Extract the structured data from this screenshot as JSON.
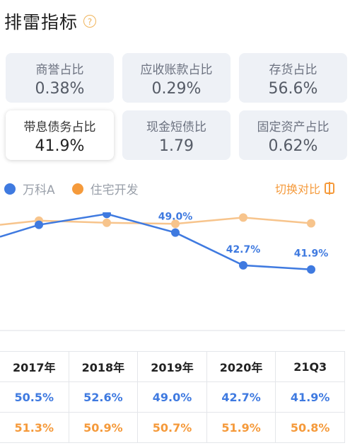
{
  "header": {
    "title": "排雷指标",
    "help_icon": "?"
  },
  "metrics": [
    {
      "label": "商誉占比",
      "value": "0.38%"
    },
    {
      "label": "应收账款占比",
      "value": "0.29%"
    },
    {
      "label": "存货占比",
      "value": "56.6%"
    },
    {
      "label": "带息债务占比",
      "value": "41.9%"
    },
    {
      "label": "现金短债比",
      "value": "1.79"
    },
    {
      "label": "固定资产占比",
      "value": "0.62%"
    }
  ],
  "legend": {
    "series1": "万科A",
    "series2": "住宅开发",
    "compare": "切换对比"
  },
  "colors": {
    "series1": "#3f7ae0",
    "series2": "#f7c48c",
    "series2_text": "#f59a3b"
  },
  "chart_data": {
    "type": "line",
    "x": [
      "2017年",
      "2018年",
      "2019年",
      "2020年",
      "21Q3"
    ],
    "series": [
      {
        "name": "万科A",
        "values": [
          50.5,
          52.6,
          49.0,
          42.7,
          41.9
        ],
        "labels": [
          "50.5%",
          "52.6%",
          "49.0%",
          "42.7%",
          "41.9%"
        ]
      },
      {
        "name": "住宅开发",
        "values": [
          51.3,
          50.9,
          50.7,
          51.9,
          50.8
        ]
      }
    ],
    "ylim": [
      30,
      60
    ]
  },
  "table": {
    "header": [
      "2017年",
      "2018年",
      "2019年",
      "2020年",
      "21Q3"
    ],
    "row1": [
      "50.5%",
      "52.6%",
      "49.0%",
      "42.7%",
      "41.9%"
    ],
    "row2": [
      "51.3%",
      "50.9%",
      "50.7%",
      "51.9%",
      "50.8%"
    ]
  }
}
